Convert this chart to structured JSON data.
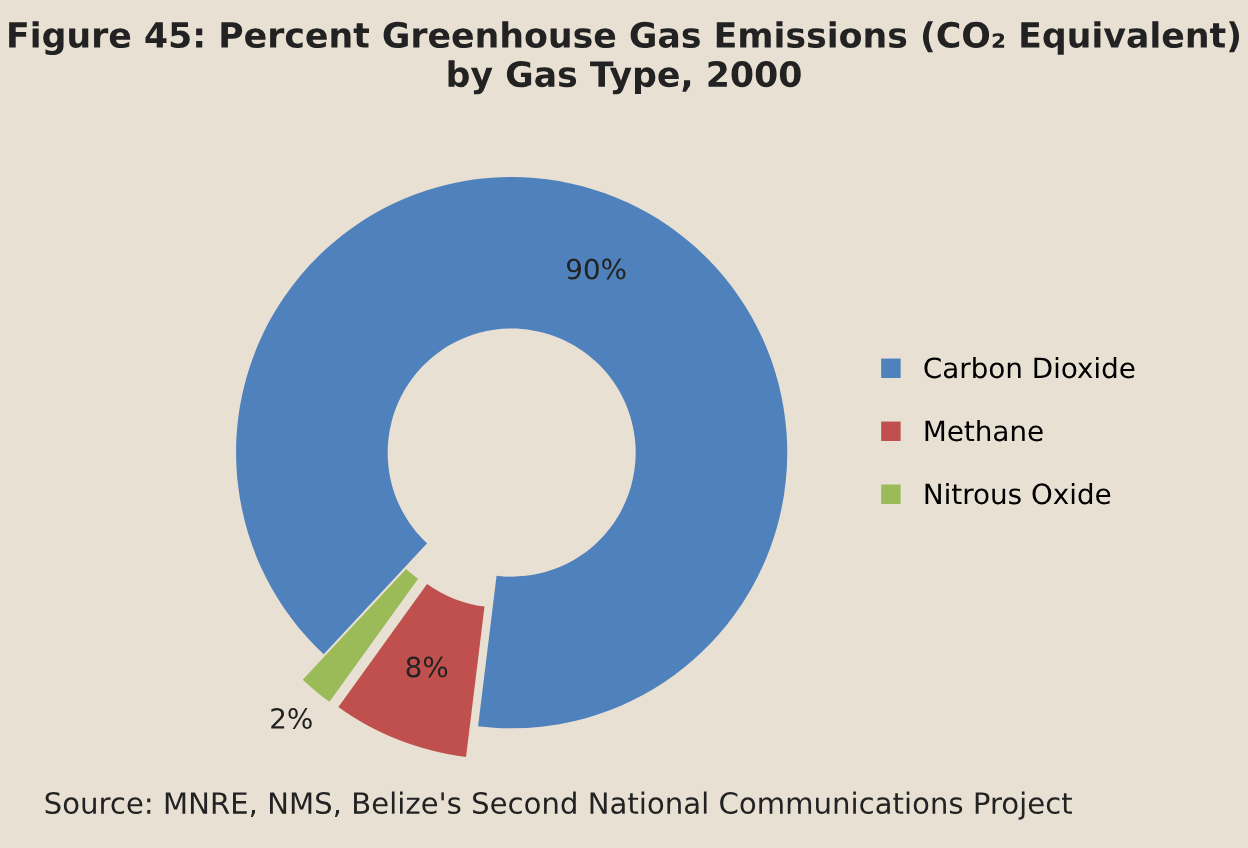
{
  "chart_data": {
    "type": "donut",
    "title": "Figure 45: Percent Greenhouse Gas Emissions (CO₂ Equivalent)\nby Gas Type, 2000",
    "categories": [
      "Carbon Dioxide",
      "Methane",
      "Nitrous Oxide"
    ],
    "values": [
      90,
      8,
      2
    ],
    "colors": [
      "#4f81bd",
      "#c0504d",
      "#9bbb59"
    ],
    "value_labels": [
      "90%",
      "8%",
      "2%"
    ],
    "legend": "right",
    "annotations": [
      "Source: MNRE, NMS, Belize's Second National Communications Project"
    ]
  }
}
